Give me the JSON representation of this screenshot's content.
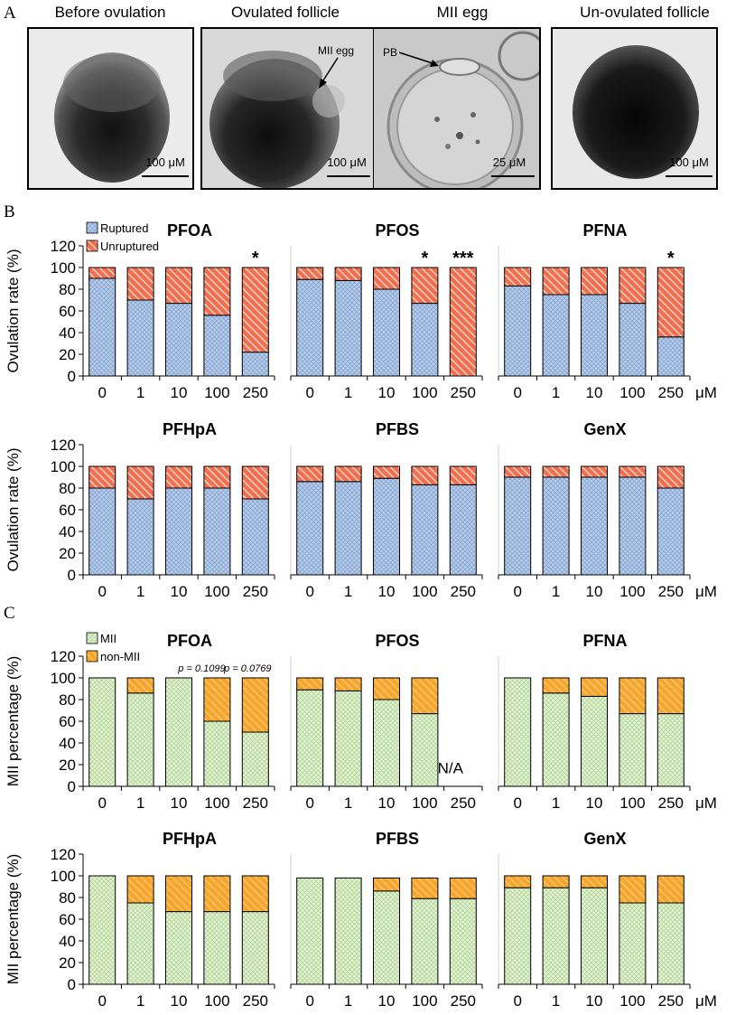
{
  "panels": {
    "a": "A",
    "b": "B",
    "c": "C"
  },
  "micrographs": [
    {
      "label": "Before ovulation",
      "scale": "100 μM"
    },
    {
      "label": "Ovulated follicle",
      "scale": "100 μM",
      "annotation": "MII egg"
    },
    {
      "label": "MII egg",
      "scale": "25 μM",
      "annotation": "PB"
    },
    {
      "label": "Un-ovulated follicle",
      "scale": "100 μM"
    }
  ],
  "colors": {
    "ruptured": "#b8cce8",
    "unruptured": "#f07050",
    "mii": "#d8edc4",
    "nonmii": "#f6a62c"
  },
  "chart_data": [
    {
      "type": "bar",
      "stacked": true,
      "title": "PFOA",
      "ylabel": "Ovulation rate (%)",
      "ylim": [
        0,
        120
      ],
      "categories": [
        "0",
        "1",
        "10",
        "100",
        "250"
      ],
      "unit": "μM",
      "legend": [
        "Ruptured",
        "Unruptured"
      ],
      "series": [
        {
          "name": "Ruptured",
          "values": [
            90,
            70,
            67,
            56,
            22
          ]
        },
        {
          "name": "Unruptured",
          "values": [
            10,
            30,
            33,
            44,
            78
          ]
        }
      ],
      "annotations": [
        "",
        "",
        "",
        "",
        "*"
      ]
    },
    {
      "type": "bar",
      "stacked": true,
      "title": "PFOS",
      "ylim": [
        0,
        120
      ],
      "categories": [
        "0",
        "1",
        "10",
        "100",
        "250"
      ],
      "unit": "μM",
      "series": [
        {
          "name": "Ruptured",
          "values": [
            89,
            88,
            80,
            67,
            0
          ]
        },
        {
          "name": "Unruptured",
          "values": [
            11,
            12,
            20,
            33,
            100
          ]
        }
      ],
      "annotations": [
        "",
        "",
        "",
        "*",
        "***"
      ]
    },
    {
      "type": "bar",
      "stacked": true,
      "title": "PFNA",
      "ylim": [
        0,
        120
      ],
      "categories": [
        "0",
        "1",
        "10",
        "100",
        "250"
      ],
      "unit": "μM",
      "series": [
        {
          "name": "Ruptured",
          "values": [
            83,
            75,
            75,
            67,
            36
          ]
        },
        {
          "name": "Unruptured",
          "values": [
            17,
            25,
            25,
            33,
            64
          ]
        }
      ],
      "annotations": [
        "",
        "",
        "",
        "",
        "*"
      ]
    },
    {
      "type": "bar",
      "stacked": true,
      "title": "PFHpA",
      "ylabel": "Ovulation rate (%)",
      "ylim": [
        0,
        120
      ],
      "categories": [
        "0",
        "1",
        "10",
        "100",
        "250"
      ],
      "unit": "μM",
      "series": [
        {
          "name": "Ruptured",
          "values": [
            80,
            70,
            80,
            80,
            70
          ]
        },
        {
          "name": "Unruptured",
          "values": [
            20,
            30,
            20,
            20,
            30
          ]
        }
      ]
    },
    {
      "type": "bar",
      "stacked": true,
      "title": "PFBS",
      "ylim": [
        0,
        120
      ],
      "categories": [
        "0",
        "1",
        "10",
        "100",
        "250"
      ],
      "unit": "μM",
      "series": [
        {
          "name": "Ruptured",
          "values": [
            86,
            86,
            89,
            83,
            83
          ]
        },
        {
          "name": "Unruptured",
          "values": [
            14,
            14,
            11,
            17,
            17
          ]
        }
      ]
    },
    {
      "type": "bar",
      "stacked": true,
      "title": "GenX",
      "ylim": [
        0,
        120
      ],
      "categories": [
        "0",
        "1",
        "10",
        "100",
        "250"
      ],
      "unit": "μM",
      "series": [
        {
          "name": "Ruptured",
          "values": [
            90,
            90,
            90,
            90,
            80
          ]
        },
        {
          "name": "Unruptured",
          "values": [
            10,
            10,
            10,
            10,
            20
          ]
        }
      ]
    },
    {
      "type": "bar",
      "stacked": true,
      "title": "PFOA",
      "ylabel": "MII percentage (%)",
      "ylim": [
        0,
        120
      ],
      "categories": [
        "0",
        "1",
        "10",
        "100",
        "250"
      ],
      "unit": "μM",
      "legend": [
        "MII",
        "non-MII"
      ],
      "pvalues": [
        "p = 0.1099",
        "p = 0.0769"
      ],
      "series": [
        {
          "name": "MII",
          "values": [
            100,
            86,
            100,
            60,
            50
          ]
        },
        {
          "name": "non-MII",
          "values": [
            0,
            14,
            0,
            40,
            50
          ]
        }
      ]
    },
    {
      "type": "bar",
      "stacked": true,
      "title": "PFOS",
      "ylim": [
        0,
        120
      ],
      "categories": [
        "0",
        "1",
        "10",
        "100",
        "250"
      ],
      "unit": "μM",
      "na_label": "N/A",
      "series": [
        {
          "name": "MII",
          "values": [
            89,
            88,
            80,
            67,
            null
          ]
        },
        {
          "name": "non-MII",
          "values": [
            11,
            12,
            20,
            33,
            null
          ]
        }
      ]
    },
    {
      "type": "bar",
      "stacked": true,
      "title": "PFNA",
      "ylim": [
        0,
        120
      ],
      "categories": [
        "0",
        "1",
        "10",
        "100",
        "250"
      ],
      "unit": "μM",
      "series": [
        {
          "name": "MII",
          "values": [
            100,
            86,
            83,
            67,
            67
          ]
        },
        {
          "name": "non-MII",
          "values": [
            0,
            14,
            17,
            33,
            33
          ]
        }
      ]
    },
    {
      "type": "bar",
      "stacked": true,
      "title": "PFHpA",
      "ylabel": "MII percentage (%)",
      "ylim": [
        0,
        120
      ],
      "categories": [
        "0",
        "1",
        "10",
        "100",
        "250"
      ],
      "unit": "μM",
      "series": [
        {
          "name": "MII",
          "values": [
            100,
            75,
            67,
            67,
            67
          ]
        },
        {
          "name": "non-MII",
          "values": [
            0,
            25,
            33,
            33,
            33
          ]
        }
      ]
    },
    {
      "type": "bar",
      "stacked": true,
      "title": "PFBS",
      "ylim": [
        0,
        120
      ],
      "categories": [
        "0",
        "1",
        "10",
        "100",
        "250"
      ],
      "unit": "μM",
      "series": [
        {
          "name": "MII",
          "values": [
            98,
            98,
            86,
            79,
            79
          ]
        },
        {
          "name": "non-MII",
          "values": [
            0,
            0,
            12,
            19,
            19
          ]
        }
      ]
    },
    {
      "type": "bar",
      "stacked": true,
      "title": "GenX",
      "ylim": [
        0,
        120
      ],
      "categories": [
        "0",
        "1",
        "10",
        "100",
        "250"
      ],
      "unit": "μM",
      "series": [
        {
          "name": "MII",
          "values": [
            89,
            89,
            89,
            75,
            75
          ]
        },
        {
          "name": "non-MII",
          "values": [
            11,
            11,
            11,
            25,
            25
          ]
        }
      ]
    }
  ]
}
